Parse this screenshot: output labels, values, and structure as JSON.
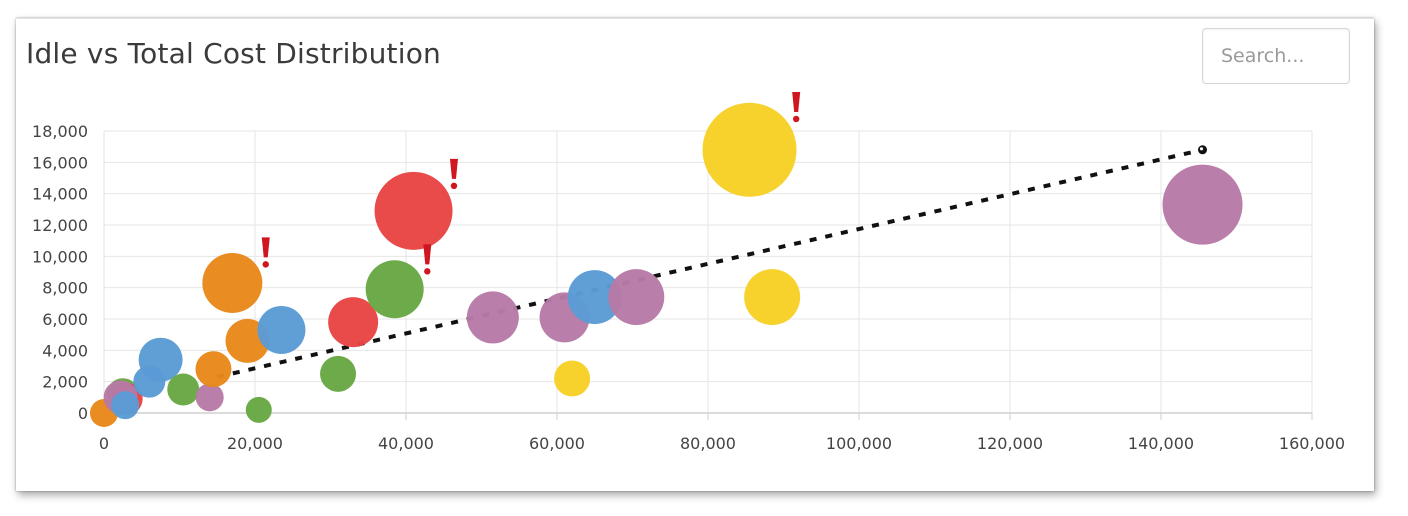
{
  "header": {
    "title": "Idle vs Total Cost Distribution"
  },
  "search": {
    "placeholder": "Search..."
  },
  "chart_data": {
    "type": "scatter",
    "title": "Idle vs Total Cost Distribution",
    "xlabel": "",
    "ylabel": "",
    "xlim": [
      0,
      160000
    ],
    "ylim": [
      0,
      18000
    ],
    "x_ticks": [
      "0",
      "20,000",
      "40,000",
      "60,000",
      "80,000",
      "100,000",
      "120,000",
      "140,000",
      "160,000"
    ],
    "y_ticks": [
      "0",
      "2,000",
      "4,000",
      "6,000",
      "8,000",
      "10,000",
      "12,000",
      "14,000",
      "16,000",
      "18,000"
    ],
    "grid": true,
    "legend": "none",
    "colors": {
      "blue": "#5b9bd5",
      "orange": "#e8891c",
      "green": "#68a844",
      "red": "#e84444",
      "yellow": "#f7cf25",
      "purple": "#b77aa6",
      "flag": "#d0161f",
      "trend": "#111111"
    },
    "points": [
      {
        "x": 0,
        "y": 0,
        "r": 14,
        "color": "orange",
        "flag": false
      },
      {
        "x": 2500,
        "y": 1200,
        "r": 16,
        "color": "green",
        "flag": false
      },
      {
        "x": 3000,
        "y": 900,
        "r": 16,
        "color": "red",
        "flag": false
      },
      {
        "x": 2200,
        "y": 1000,
        "r": 17,
        "color": "purple",
        "flag": false
      },
      {
        "x": 2800,
        "y": 500,
        "r": 14,
        "color": "blue",
        "flag": false
      },
      {
        "x": 6000,
        "y": 2000,
        "r": 16,
        "color": "blue",
        "flag": false
      },
      {
        "x": 7500,
        "y": 3400,
        "r": 22,
        "color": "blue",
        "flag": false
      },
      {
        "x": 10500,
        "y": 1500,
        "r": 16,
        "color": "green",
        "flag": false
      },
      {
        "x": 14000,
        "y": 1000,
        "r": 14,
        "color": "purple",
        "flag": false
      },
      {
        "x": 14500,
        "y": 2800,
        "r": 18,
        "color": "orange",
        "flag": false
      },
      {
        "x": 17000,
        "y": 8300,
        "r": 30,
        "color": "orange",
        "flag": true
      },
      {
        "x": 19000,
        "y": 4600,
        "r": 22,
        "color": "orange",
        "flag": false
      },
      {
        "x": 20500,
        "y": 200,
        "r": 13,
        "color": "green",
        "flag": false
      },
      {
        "x": 23500,
        "y": 5300,
        "r": 24,
        "color": "blue",
        "flag": false
      },
      {
        "x": 31000,
        "y": 2500,
        "r": 18,
        "color": "green",
        "flag": false
      },
      {
        "x": 33000,
        "y": 5800,
        "r": 25,
        "color": "red",
        "flag": false
      },
      {
        "x": 38500,
        "y": 7900,
        "r": 29,
        "color": "green",
        "flag": true
      },
      {
        "x": 41000,
        "y": 12900,
        "r": 39,
        "color": "red",
        "flag": true
      },
      {
        "x": 51500,
        "y": 6100,
        "r": 26,
        "color": "purple",
        "flag": false
      },
      {
        "x": 61000,
        "y": 6100,
        "r": 25,
        "color": "purple",
        "flag": false
      },
      {
        "x": 62000,
        "y": 2200,
        "r": 18,
        "color": "yellow",
        "flag": false
      },
      {
        "x": 65000,
        "y": 7400,
        "r": 27,
        "color": "blue",
        "flag": false
      },
      {
        "x": 70500,
        "y": 7400,
        "r": 28,
        "color": "purple",
        "flag": false
      },
      {
        "x": 85500,
        "y": 16800,
        "r": 47,
        "color": "yellow",
        "flag": true
      },
      {
        "x": 88500,
        "y": 7400,
        "r": 28,
        "color": "yellow",
        "flag": false
      },
      {
        "x": 145500,
        "y": 13300,
        "r": 40,
        "color": "purple",
        "flag": false
      }
    ],
    "trendline": {
      "x": [
        15000,
        145500
      ],
      "y": [
        2300,
        16800
      ]
    }
  }
}
